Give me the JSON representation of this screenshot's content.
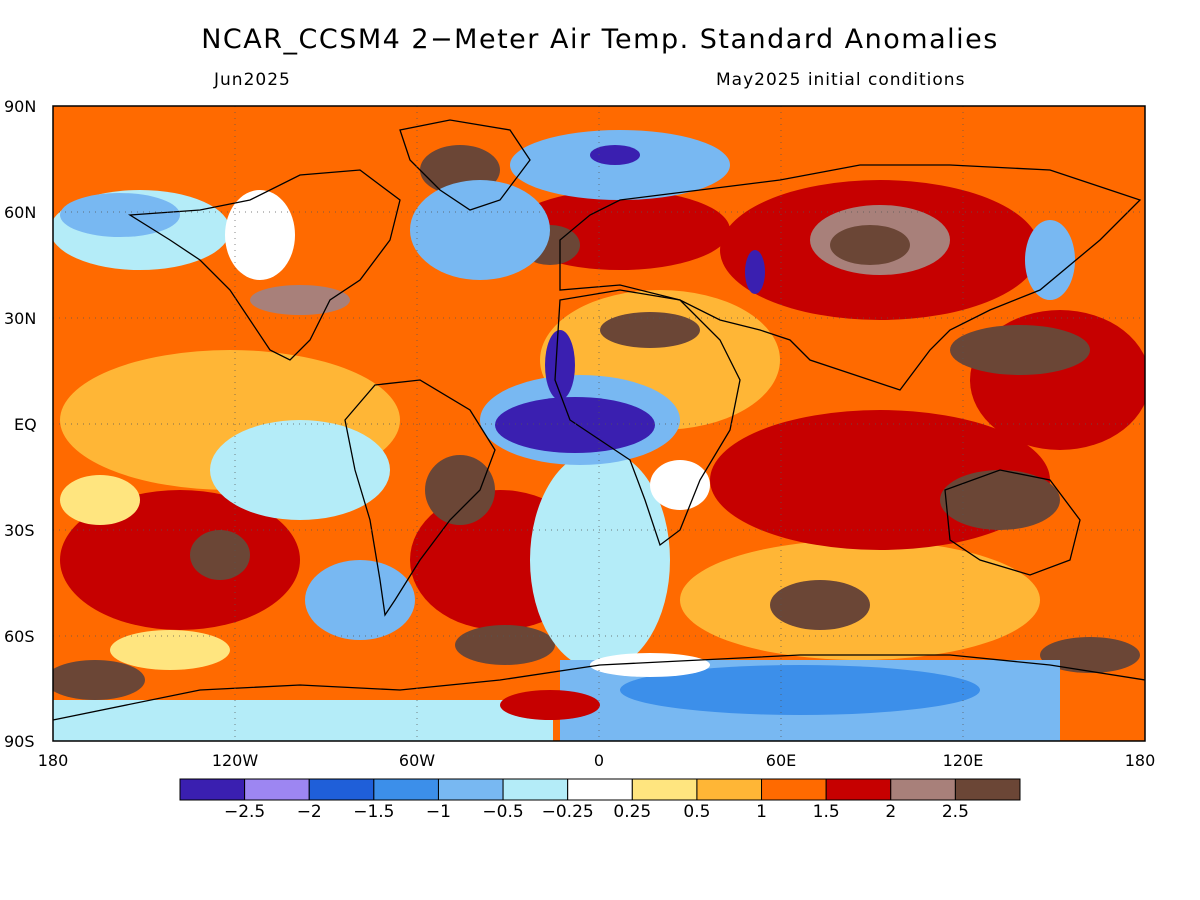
{
  "title": "NCAR_CCSM4 2−Meter Air Temp. Standard Anomalies",
  "valid_month": "Jun2025",
  "initial_conditions": "May2025 initial conditions",
  "lat_labels": [
    "90N",
    "60N",
    "30N",
    "EQ",
    "30S",
    "60S",
    "90S"
  ],
  "lon_labels": [
    "180",
    "120W",
    "60W",
    "0",
    "60E",
    "120E",
    "180"
  ],
  "colorbar": {
    "colors": [
      "#3a1fb0",
      "#9d86f2",
      "#1f5fd9",
      "#3c8fea",
      "#78b8f2",
      "#b4ecf8",
      "#ffffff",
      "#ffe57f",
      "#ffb636",
      "#ff6a00",
      "#c60000",
      "#a8807a",
      "#6b4636"
    ],
    "labels": [
      "−2.5",
      "−2",
      "−1.5",
      "−1",
      "−0.5",
      "−0.25",
      "0.25",
      "0.5",
      "1",
      "1.5",
      "2",
      "2.5"
    ]
  },
  "map_regions": [
    {
      "name": "arctic-warm",
      "color": "#ff6a00"
    },
    {
      "name": "east-asia-warm",
      "color": "#6b4636"
    },
    {
      "name": "atlantic-cold",
      "color": "#3a1fb0"
    },
    {
      "name": "antarctic-cool",
      "color": "#78b8f2"
    },
    {
      "name": "southern-ocean-warm",
      "color": "#c60000"
    }
  ]
}
